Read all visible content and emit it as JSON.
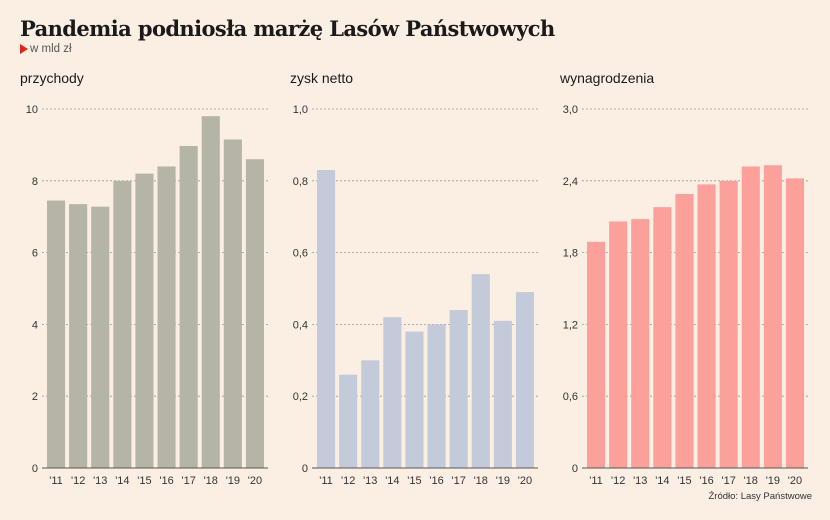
{
  "title": "Pandemia podniosła marżę Lasów Państwowych",
  "unit_label": "w mld zł",
  "source": "Źródło: Lasy Państwowe",
  "chart_data": [
    {
      "type": "bar",
      "title": "przychody",
      "categories": [
        "'11",
        "'12",
        "'13",
        "'14",
        "'15",
        "'16",
        "'17",
        "'18",
        "'19",
        "'20"
      ],
      "values": [
        7.45,
        7.35,
        7.28,
        8.0,
        8.2,
        8.4,
        8.97,
        9.8,
        9.15,
        8.6
      ],
      "ylim": [
        0,
        10
      ],
      "yticks": [
        "0",
        "2",
        "4",
        "6",
        "8",
        "10"
      ],
      "tick_values": [
        0,
        2,
        4,
        6,
        8,
        10
      ],
      "color": "#b5b5a7",
      "grid": true
    },
    {
      "type": "bar",
      "title": "zysk netto",
      "categories": [
        "'11",
        "'12",
        "'13",
        "'14",
        "'15",
        "'16",
        "'17",
        "'18",
        "'19",
        "'20"
      ],
      "values": [
        0.83,
        0.26,
        0.3,
        0.42,
        0.38,
        0.4,
        0.44,
        0.54,
        0.41,
        0.49
      ],
      "ylim": [
        0,
        1.0
      ],
      "yticks": [
        "0",
        "0,2",
        "0,4",
        "0,6",
        "0,8",
        "1,0"
      ],
      "tick_values": [
        0,
        0.2,
        0.4,
        0.6,
        0.8,
        1.0
      ],
      "color": "#c3cad9",
      "grid": true
    },
    {
      "type": "bar",
      "title": "wynagrodzenia",
      "categories": [
        "'11",
        "'12",
        "'13",
        "'14",
        "'15",
        "'16",
        "'17",
        "'18",
        "'19",
        "'20"
      ],
      "values": [
        1.89,
        2.06,
        2.08,
        2.18,
        2.29,
        2.37,
        2.4,
        2.52,
        2.53,
        2.42
      ],
      "ylim": [
        0,
        3.0
      ],
      "yticks": [
        "0",
        "0,6",
        "1,2",
        "1,8",
        "2,4",
        "3,0"
      ],
      "tick_values": [
        0,
        0.6,
        1.2,
        1.8,
        2.4,
        3.0
      ],
      "color": "#fca09c",
      "grid": true
    }
  ]
}
